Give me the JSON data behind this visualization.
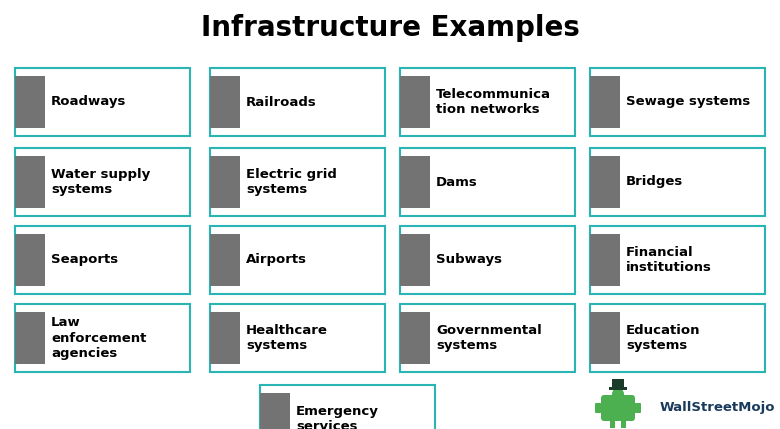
{
  "title": "Infrastructure Examples",
  "title_fontsize": 20,
  "title_fontweight": "bold",
  "background_color": "#ffffff",
  "box_border_color": "#2ab5b5",
  "gray_rect_color": "#737373",
  "text_color": "#000000",
  "items": [
    {
      "col": 0,
      "row": 0,
      "label": "Roadways"
    },
    {
      "col": 0,
      "row": 1,
      "label": "Water supply\nsystems"
    },
    {
      "col": 0,
      "row": 2,
      "label": "Seaports"
    },
    {
      "col": 0,
      "row": 3,
      "label": "Law\nenforcement\nagencies"
    },
    {
      "col": 1,
      "row": 0,
      "label": "Railroads"
    },
    {
      "col": 1,
      "row": 1,
      "label": "Electric grid\nsystems"
    },
    {
      "col": 1,
      "row": 2,
      "label": "Airports"
    },
    {
      "col": 1,
      "row": 3,
      "label": "Healthcare\nsystems"
    },
    {
      "col": 1,
      "row": 4,
      "label": "Emergency\nservices",
      "special": true
    },
    {
      "col": 2,
      "row": 0,
      "label": "Telecommunica\ntion networks"
    },
    {
      "col": 2,
      "row": 1,
      "label": "Dams"
    },
    {
      "col": 2,
      "row": 2,
      "label": "Subways"
    },
    {
      "col": 2,
      "row": 3,
      "label": "Governmental\nsystems"
    },
    {
      "col": 3,
      "row": 0,
      "label": "Sewage systems"
    },
    {
      "col": 3,
      "row": 1,
      "label": "Bridges"
    },
    {
      "col": 3,
      "row": 2,
      "label": "Financial\ninstitutions"
    },
    {
      "col": 3,
      "row": 3,
      "label": "Education\nsystems"
    }
  ],
  "text_fontsize": 9.5,
  "text_fontweight": "bold",
  "watermark_text": "WallStreetMojo",
  "watermark_fontsize": 9.5
}
